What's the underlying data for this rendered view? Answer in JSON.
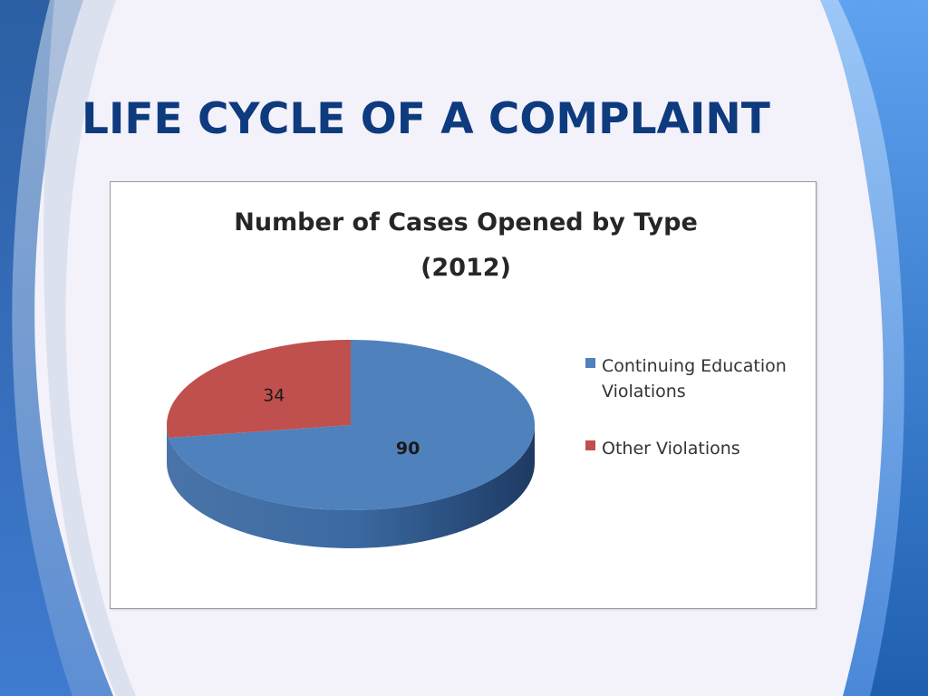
{
  "slide": {
    "title": "LIFE CYCLE OF A COMPLAINT"
  },
  "colors": {
    "background": "#f3f2fb",
    "title": "#0e3a7e",
    "band_dark": "#1d4f93",
    "band_light": "#5d8ed3",
    "series_blue": "#4f81bd",
    "series_red": "#c0504d"
  },
  "chart_data": {
    "type": "pie",
    "style": "3d",
    "title_lines": [
      "Number of Cases Opened by Type",
      "(2012)"
    ],
    "slices": [
      {
        "name": "Continuing Education Violations",
        "legend_lines": [
          "Continuing Education",
          "Violations"
        ],
        "value": 90,
        "label": "90",
        "color": "#4f81bd",
        "label_bold": true
      },
      {
        "name": "Other Violations",
        "legend_lines": [
          "Other Violations"
        ],
        "value": 34,
        "label": "34",
        "color": "#c0504d",
        "label_bold": false
      }
    ],
    "legend_position": "right"
  }
}
